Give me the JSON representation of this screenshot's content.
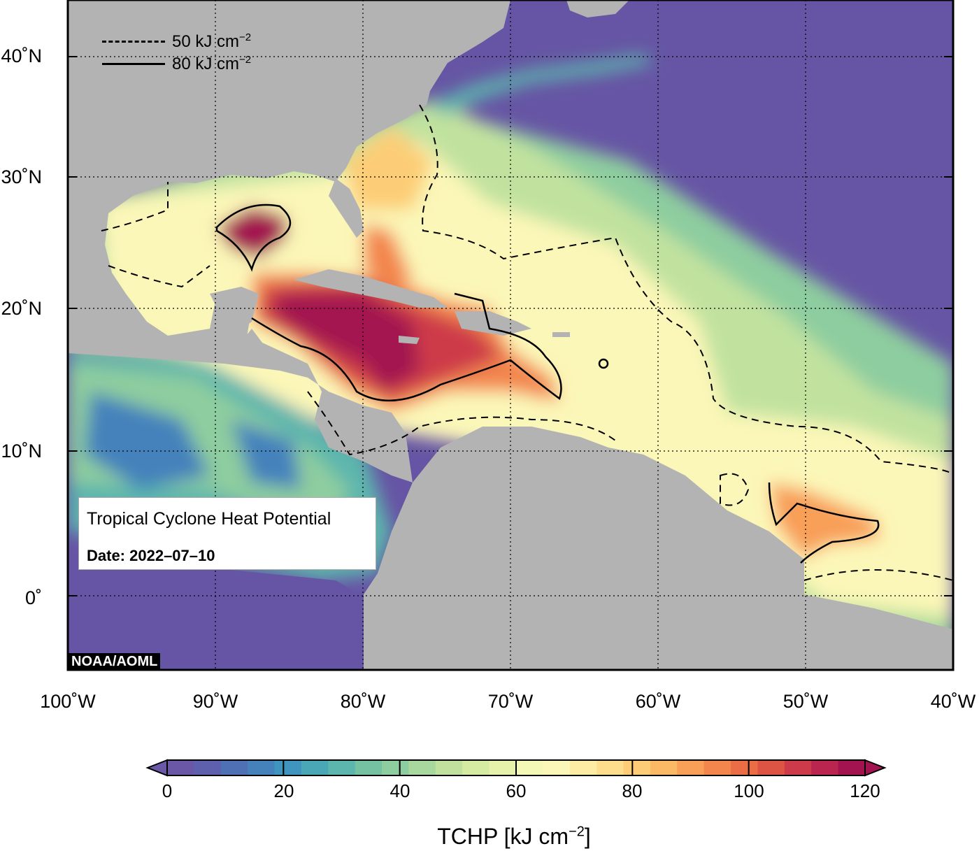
{
  "map": {
    "title": "Tropical Cyclone Heat Potential",
    "date_text": "Date: 2022–07–10",
    "credit": "NOAA/AOML",
    "colors": {
      "land": "#b3b3b3",
      "deep_ocean": "#6655a4",
      "frame": "#000000"
    },
    "lat_labels": [
      "40˚N",
      "30˚N",
      "20˚N",
      "10˚N",
      "0˚"
    ],
    "lon_labels": [
      "100˚W",
      "90˚W",
      "80˚W",
      "70˚W",
      "60˚W",
      "50˚W",
      "40˚W"
    ]
  },
  "legend": {
    "dashed_label": "50 kJ cm",
    "solid_label": "80 kJ cm",
    "exponent": "−2"
  },
  "colorbar": {
    "title": "TCHP [kJ cm",
    "title_exp": "−2",
    "title_close": "]",
    "ticks": [
      "0",
      "20",
      "40",
      "60",
      "80",
      "100",
      "120"
    ],
    "palette": [
      "#6a58a6",
      "#5e5fad",
      "#5070b5",
      "#4582bb",
      "#3f95bd",
      "#49a7b6",
      "#5db6ad",
      "#75c2a3",
      "#8ecd9f",
      "#a8d89e",
      "#c1e29f",
      "#d6eba2",
      "#e6f2aa",
      "#f3f8b6",
      "#fbf7b8",
      "#fdeda4",
      "#fdde8c",
      "#fccd76",
      "#fbb865",
      "#f89f58",
      "#f3864d",
      "#ea6d46",
      "#dd5445",
      "#cd3b4a",
      "#b9254e",
      "#a3134f"
    ]
  }
}
